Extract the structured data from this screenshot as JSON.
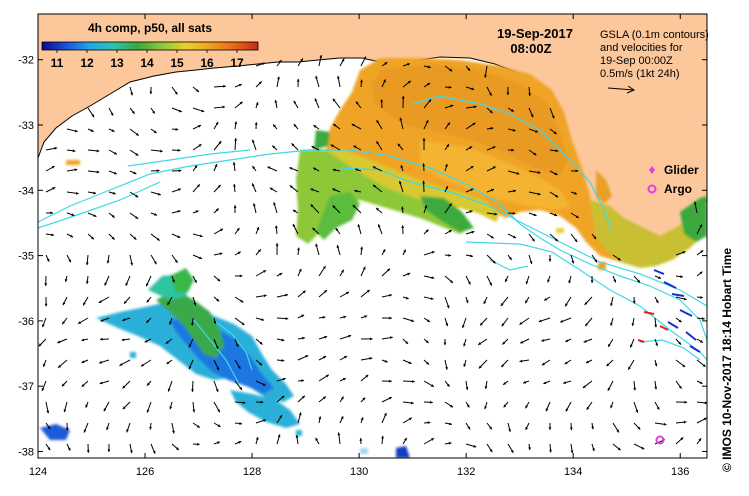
{
  "map": {
    "date": "19-Sep-2017",
    "time": "08:00Z",
    "colorbar": {
      "title": "4h comp, p50, all sats",
      "tick_labels": [
        "11",
        "12",
        "13",
        "14",
        "15",
        "16",
        "17"
      ],
      "min": 10.5,
      "max": 17.7,
      "colors": [
        "#0a0a8c",
        "#1a4fe0",
        "#1fa8e8",
        "#2ec4a8",
        "#3ca83c",
        "#8ec83a",
        "#e8d22a",
        "#f0a020",
        "#e86a14",
        "#c82814"
      ]
    },
    "gsla_note": [
      "GSLA (0.1m contours)",
      "and velocities for",
      "19-Sep 00:00Z",
      "0.5m/s (1kt 24h)"
    ],
    "legend": [
      {
        "label": "Glider",
        "icon": "glider-diamond-icon",
        "color": "#e040e0"
      },
      {
        "label": "Argo",
        "icon": "argo-circle-icon",
        "color": "#e040e0"
      }
    ],
    "credit": "© IMOS 10-Nov-2017 18:14 Hobart Time",
    "x_ticks": [
      "124",
      "126",
      "128",
      "130",
      "132",
      "134",
      "136"
    ],
    "y_ticks": [
      "-32",
      "-33",
      "-34",
      "-35",
      "-36",
      "-37",
      "-38"
    ],
    "x_range": [
      124,
      136.5
    ],
    "y_range": [
      -38.1,
      -31.3
    ],
    "land_color": "#fcc89b",
    "contour_color": "#40d8e8"
  }
}
